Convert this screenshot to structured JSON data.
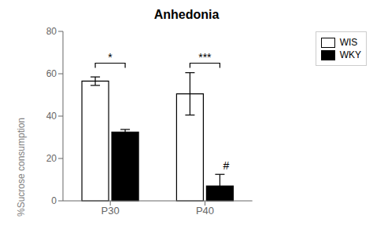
{
  "chart_data": {
    "type": "bar",
    "title": "Anhedonia",
    "y_label": "%Sucrose consumption",
    "categories": [
      "P30",
      "P40"
    ],
    "series": [
      {
        "name": "WIS",
        "color": "#ffffff",
        "values": [
          56.5,
          50.5
        ],
        "errors": [
          2.0,
          10.0
        ]
      },
      {
        "name": "WKY",
        "color": "#000000",
        "values": [
          32.5,
          7.0
        ],
        "errors": [
          1.2,
          5.5
        ]
      }
    ],
    "ylim": [
      0,
      80
    ],
    "yticks": [
      0,
      20,
      40,
      60,
      80
    ],
    "grid": false,
    "legend": "upper right",
    "annotations": [
      {
        "text": "*",
        "category": "P30",
        "y": 65
      },
      {
        "text": "***",
        "category": "P40",
        "y": 65
      },
      {
        "text": "#",
        "category": "P40",
        "series": "WKY"
      }
    ]
  }
}
